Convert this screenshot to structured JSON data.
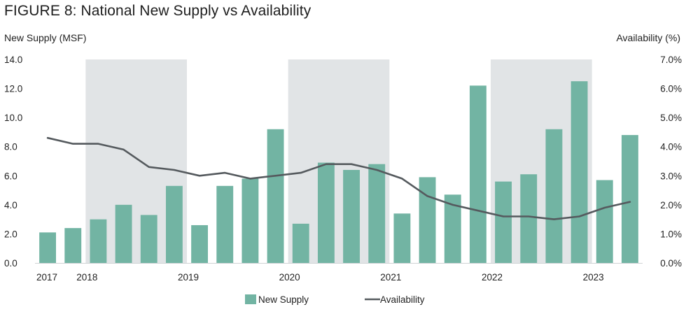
{
  "colors": {
    "bar": "#72b4a3",
    "line": "#555a5e",
    "shade": "#e1e4e6"
  },
  "chart_data": {
    "type": "bar",
    "title": "FIGURE 8: National New Supply vs Availability",
    "ylabel_left": "New Supply (MSF)",
    "ylabel_right": "Availability (%)",
    "ylim_left": [
      0,
      14
    ],
    "ylim_right": [
      0,
      7
    ],
    "yticks_left": [
      "0.0",
      "2.0",
      "4.0",
      "6.0",
      "8.0",
      "10.0",
      "12.0",
      "14.0"
    ],
    "yticks_right": [
      "0.0%",
      "1.0%",
      "2.0%",
      "3.0%",
      "4.0%",
      "5.0%",
      "6.0%",
      "7.0%"
    ],
    "grid": false,
    "legend_placement": "bottom-center",
    "x_labels": [
      {
        "label": "2017",
        "quarter_index": 0
      },
      {
        "label": "2018",
        "quarter_index": 2
      },
      {
        "label": "2019",
        "quarter_index": 6
      },
      {
        "label": "2020",
        "quarter_index": 10
      },
      {
        "label": "2021",
        "quarter_index": 14
      },
      {
        "label": "2022",
        "quarter_index": 18
      },
      {
        "label": "2023",
        "quarter_index": 22
      }
    ],
    "shaded_year_spans": [
      [
        2,
        5
      ],
      [
        10,
        13
      ],
      [
        18,
        21
      ]
    ],
    "series": [
      {
        "name": "New Supply",
        "type": "bar",
        "axis": "left",
        "values": [
          2.1,
          2.4,
          3.0,
          4.0,
          3.3,
          5.3,
          2.6,
          5.3,
          5.8,
          9.2,
          2.7,
          6.9,
          6.4,
          6.8,
          3.4,
          5.9,
          4.7,
          12.2,
          5.6,
          6.1,
          9.2,
          12.5,
          5.7,
          8.8
        ]
      },
      {
        "name": "Availability",
        "type": "line",
        "axis": "right",
        "values": [
          4.3,
          4.1,
          4.1,
          3.9,
          3.3,
          3.2,
          3.0,
          3.1,
          2.9,
          3.0,
          3.1,
          3.4,
          3.4,
          3.2,
          2.9,
          2.3,
          2.0,
          1.8,
          1.6,
          1.6,
          1.5,
          1.6,
          1.9,
          2.1
        ]
      }
    ]
  }
}
